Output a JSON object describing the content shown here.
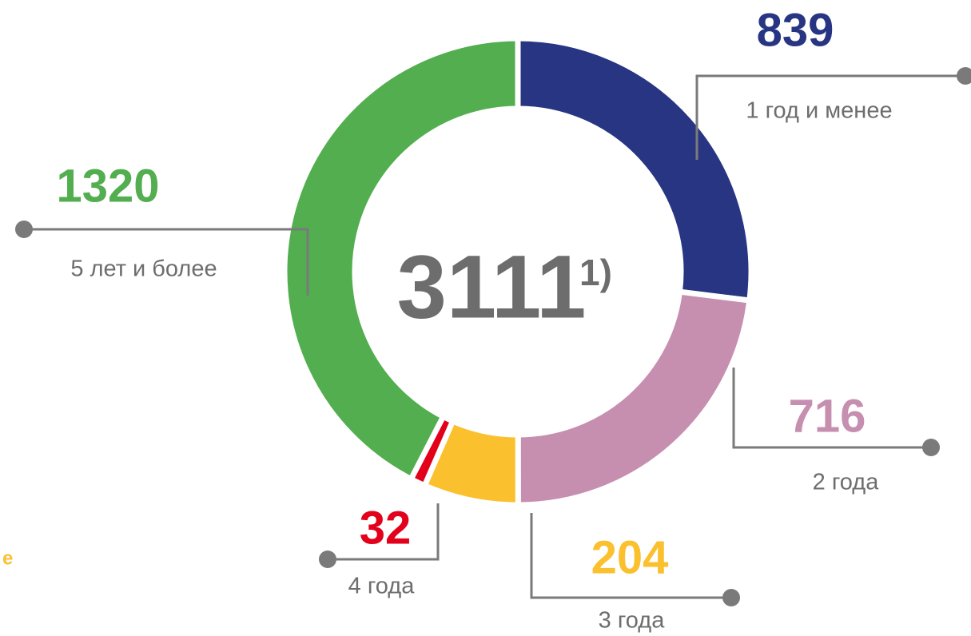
{
  "chart_data": {
    "type": "donut",
    "categories": [
      "1 год и менее",
      "2 года",
      "3 года",
      "4 года",
      "5 лет и более"
    ],
    "values": [
      839,
      716,
      204,
      32,
      1320
    ],
    "colors": [
      "#283583",
      "#c68fb0",
      "#fbc02d",
      "#e2001a",
      "#52ae4f"
    ],
    "total": 3111,
    "total_note": "1)"
  },
  "fragment": "е"
}
